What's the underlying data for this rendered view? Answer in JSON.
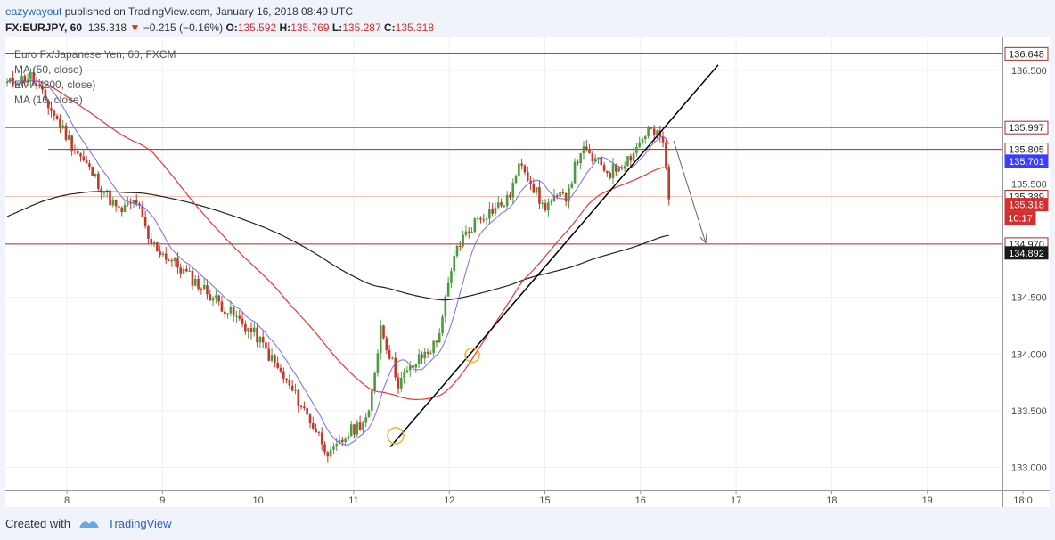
{
  "header": {
    "author": "eazywayout",
    "published_text": "published on TradingView.com, January 16, 2018 08:49 UTC",
    "symbol_line": "FX:EURJPY, 60",
    "last": "135.318",
    "change_arrow": "▼",
    "change": "−0.215 (−0.16%)",
    "o_label": "O:",
    "o_value": "135.592",
    "h_label": "H:",
    "h_value": "135.769",
    "l_label": "L:",
    "l_value": "135.287",
    "c_label": "C:",
    "c_value": "135.318"
  },
  "legend": {
    "title": "Euro Fx/Japanese Yen, 60, FXCM",
    "indicators": [
      "MA (50, close)",
      "EMA (200, close)",
      "MA (10, close)"
    ]
  },
  "colors": {
    "background": "#ffffff",
    "up": "#4a9c3e",
    "down": "#c0392b",
    "ma10": "#7b68ee",
    "ma50": "#e53935",
    "ema200": "#222222",
    "level": "#a52a2a",
    "trendline": "#000000",
    "circle": "#f0b429",
    "tag_blue": "#3d3dff",
    "tag_red": "#d32f2f",
    "tag_dark": "#1a1a1a"
  },
  "chart_data": {
    "type": "candlestick",
    "ylim": [
      132.8,
      136.8
    ],
    "y_ticks": [
      "133.000",
      "133.500",
      "134.000",
      "134.500",
      "135.500",
      "136.000",
      "136.500"
    ],
    "x_ticks": [
      "8",
      "9",
      "10",
      "11",
      "12",
      "15",
      "16",
      "17",
      "18",
      "19",
      "18:0"
    ],
    "grid": true,
    "horizontal_levels": [
      136.648,
      135.997,
      135.805,
      134.97
    ],
    "series": [
      {
        "name": "MA (10, close)"
      },
      {
        "name": "MA (50, close)"
      },
      {
        "name": "EMA (200, close)"
      }
    ],
    "price_tags": [
      {
        "label": "136.648",
        "value": 136.648,
        "style": "outline"
      },
      {
        "label": "135.997",
        "value": 135.997,
        "style": "outline"
      },
      {
        "label": "135.805",
        "value": 135.805,
        "style": "outline"
      },
      {
        "label": "135.701",
        "value": 135.701,
        "style": "blue"
      },
      {
        "label": "135.389",
        "value": 135.389,
        "style": "outline"
      },
      {
        "label": "135.318",
        "value": 135.318,
        "style": "red"
      },
      {
        "label": "10:17",
        "value": 135.318,
        "style": "red",
        "offset": 1
      },
      {
        "label": "134.970",
        "value": 134.97,
        "style": "outline"
      },
      {
        "label": "134.892",
        "value": 134.892,
        "style": "dark"
      }
    ]
  },
  "footer": {
    "created_with": "Created with",
    "brand": "TradingView"
  }
}
